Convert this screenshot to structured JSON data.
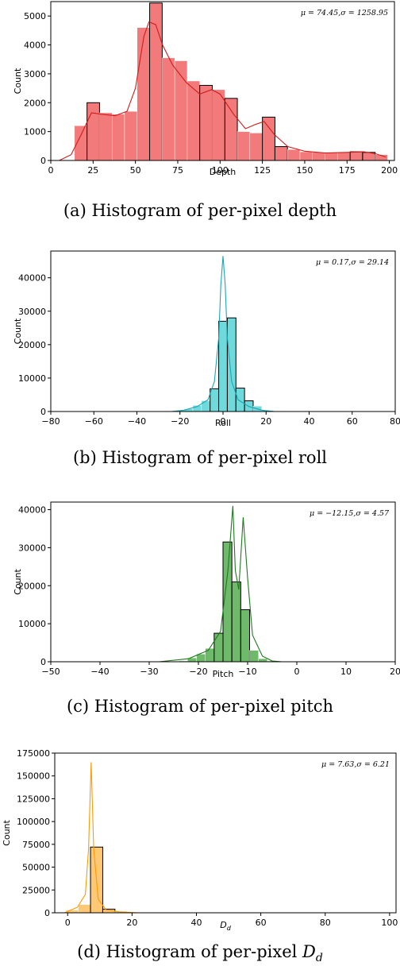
{
  "chart_data": [
    {
      "type": "bar",
      "id": "depth",
      "ylabel": "Count",
      "xlabel": "Depth",
      "stat": "μ = 74.45,σ = 1258.95",
      "caption": "(a) Histogram of per-pixel depth",
      "xlim": [
        0,
        203
      ],
      "ylim": [
        0,
        5500
      ],
      "xticks": [
        0,
        25,
        50,
        75,
        100,
        125,
        150,
        175,
        200
      ],
      "yticks": [
        0,
        1000,
        2000,
        3000,
        4000,
        5000
      ],
      "bin_width": 7.4,
      "bin_starts": [
        14,
        21.4,
        28.8,
        36.2,
        43.6,
        51,
        58.4,
        65.8,
        73.2,
        80.6,
        88,
        95.4,
        102.8,
        110.2,
        117.6,
        125,
        132.4,
        139.8,
        147.2,
        154.6,
        162,
        169.4,
        176.8,
        184.2,
        191.6
      ],
      "counts": [
        1200,
        2000,
        1650,
        1600,
        1700,
        4600,
        5450,
        3550,
        3450,
        2750,
        2600,
        2450,
        2150,
        1000,
        950,
        1500,
        480,
        380,
        300,
        280,
        270,
        280,
        300,
        280,
        200
      ],
      "edge_bins": [
        1,
        6,
        10,
        12,
        15,
        16,
        22,
        23
      ],
      "kde": [
        [
          5,
          0
        ],
        [
          12,
          200
        ],
        [
          18,
          900
        ],
        [
          24,
          1650
        ],
        [
          30,
          1600
        ],
        [
          38,
          1550
        ],
        [
          45,
          1700
        ],
        [
          50,
          2500
        ],
        [
          55,
          4300
        ],
        [
          58,
          4800
        ],
        [
          62,
          4700
        ],
        [
          66,
          4000
        ],
        [
          72,
          3300
        ],
        [
          80,
          2700
        ],
        [
          88,
          2300
        ],
        [
          95,
          2450
        ],
        [
          100,
          2300
        ],
        [
          108,
          1600
        ],
        [
          115,
          1100
        ],
        [
          121,
          1250
        ],
        [
          126,
          1350
        ],
        [
          132,
          900
        ],
        [
          140,
          480
        ],
        [
          150,
          320
        ],
        [
          162,
          260
        ],
        [
          175,
          280
        ],
        [
          185,
          300
        ],
        [
          192,
          230
        ],
        [
          198,
          120
        ]
      ],
      "color": "#f26b6b",
      "line_color": "#d01c1c"
    },
    {
      "type": "bar",
      "id": "roll",
      "ylabel": "Count",
      "xlabel": "Roll",
      "stat": "μ = 0.17,σ = 29.14",
      "caption": "(b) Histogram of per-pixel roll",
      "xlim": [
        -80,
        80
      ],
      "ylim": [
        0,
        48000
      ],
      "xticks": [
        -80,
        -60,
        -40,
        -20,
        0,
        20,
        40,
        60,
        80
      ],
      "yticks": [
        0,
        10000,
        20000,
        30000,
        40000
      ],
      "bin_width": 4,
      "bin_starts": [
        -22,
        -18,
        -14,
        -10,
        -6,
        -2,
        2,
        6,
        10,
        14,
        18
      ],
      "counts": [
        300,
        800,
        1800,
        3200,
        6800,
        27000,
        28000,
        7000,
        3200,
        1600,
        300
      ],
      "edge_bins": [
        4,
        5,
        6,
        7,
        8
      ],
      "kde": [
        [
          -24,
          0
        ],
        [
          -18,
          400
        ],
        [
          -12,
          1500
        ],
        [
          -7,
          3500
        ],
        [
          -4,
          9000
        ],
        [
          -2,
          22000
        ],
        [
          -1,
          38000
        ],
        [
          0,
          46500
        ],
        [
          1,
          38000
        ],
        [
          2,
          22000
        ],
        [
          4,
          9000
        ],
        [
          7,
          3500
        ],
        [
          12,
          1500
        ],
        [
          18,
          400
        ],
        [
          24,
          0
        ]
      ],
      "color": "#61d5d8",
      "line_color": "#1aa7b4"
    },
    {
      "type": "bar",
      "id": "pitch",
      "ylabel": "Count",
      "xlabel": "Pitch",
      "stat": "μ = −12.15,σ = 4.57",
      "caption": "(c) Histogram of per-pixel pitch",
      "xlim": [
        -50,
        20
      ],
      "ylim": [
        0,
        42000
      ],
      "xticks": [
        -50,
        -40,
        -30,
        -20,
        0,
        10,
        20
      ],
      "yticks": [
        0,
        10000,
        20000,
        30000,
        40000
      ],
      "extra_tick_label": "−10",
      "bin_width": 1.8,
      "bin_starts": [
        -24,
        -22.2,
        -20.4,
        -18.6,
        -16.8,
        -15,
        -13.2,
        -11.4,
        -9.6,
        -7.8,
        -6
      ],
      "counts": [
        200,
        1000,
        2000,
        3500,
        7500,
        31500,
        21000,
        13700,
        3000,
        800,
        200
      ],
      "edge_bins": [
        4,
        5,
        6,
        7
      ],
      "kde": [
        [
          -28,
          0
        ],
        [
          -22,
          800
        ],
        [
          -18,
          3000
        ],
        [
          -15.5,
          8000
        ],
        [
          -14,
          24000
        ],
        [
          -13,
          41000
        ],
        [
          -12.5,
          24000
        ],
        [
          -11.8,
          19000
        ],
        [
          -10.9,
          38000
        ],
        [
          -10,
          22000
        ],
        [
          -9,
          7000
        ],
        [
          -7,
          1500
        ],
        [
          -5,
          200
        ],
        [
          -3,
          0
        ]
      ],
      "color": "#5fb25a",
      "line_color": "#1f7a1f"
    },
    {
      "type": "bar",
      "id": "dd",
      "ylabel": "Count",
      "xlabel": "D",
      "xlabel_sub": "d",
      "stat": "μ = 7.63,σ = 6.21",
      "caption": "(d) Histogram of per-pixel ",
      "caption_var": "D",
      "caption_sub": "d",
      "xlim": [
        -4,
        102
      ],
      "ylim": [
        0,
        175000
      ],
      "xticks": [
        0,
        20,
        40,
        60,
        80,
        100
      ],
      "yticks": [
        0,
        25000,
        50000,
        75000,
        100000,
        125000,
        150000,
        175000
      ],
      "bin_width": 3.8,
      "bin_starts": [
        -0.5,
        3.3,
        7.1,
        10.9,
        14.7,
        18.5
      ],
      "counts": [
        3000,
        9000,
        72000,
        4000,
        1500,
        400
      ],
      "edge_bins": [
        2,
        3
      ],
      "kde": [
        [
          -1,
          0
        ],
        [
          3,
          6000
        ],
        [
          5.5,
          20000
        ],
        [
          6.5,
          70000
        ],
        [
          7.3,
          165000
        ],
        [
          8.1,
          70000
        ],
        [
          9.5,
          15000
        ],
        [
          12,
          3000
        ],
        [
          16,
          1000
        ],
        [
          22,
          0
        ]
      ],
      "color": "#ffc266",
      "line_color": "#ff9a00"
    }
  ]
}
